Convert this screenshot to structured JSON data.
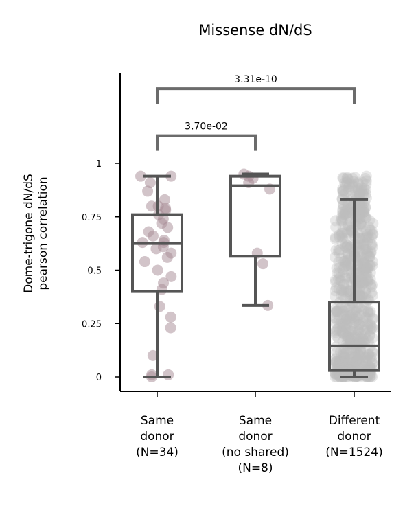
{
  "chart_data": {
    "type": "box",
    "title": "Missense dN/dS",
    "ylabel_line1": "Dome-trigone dN/dS",
    "ylabel_line2": "pearson correlation",
    "ylim": [
      -0.07,
      1.42
    ],
    "yticks": [
      0,
      0.25,
      0.5,
      0.75,
      1
    ],
    "ytick_labels": [
      "0",
      "0.25",
      "0.5",
      "0.75",
      "1"
    ],
    "grid": false,
    "groups": [
      {
        "label_lines": [
          "Same",
          "donor",
          "(N=34)"
        ],
        "n": 34,
        "box": {
          "q1": 0.4,
          "median": 0.625,
          "q3": 0.76,
          "whisker_low": 0.0,
          "whisker_high": 0.94
        },
        "point_color": "#a58a94",
        "points": [
          0.94,
          0.94,
          0.91,
          0.87,
          0.83,
          0.8,
          0.8,
          0.79,
          0.78,
          0.76,
          0.74,
          0.72,
          0.7,
          0.68,
          0.66,
          0.64,
          0.63,
          0.63,
          0.61,
          0.6,
          0.58,
          0.56,
          0.54,
          0.5,
          0.47,
          0.44,
          0.41,
          0.33,
          0.28,
          0.23,
          0.1,
          0.01,
          0.01,
          0.0
        ]
      },
      {
        "label_lines": [
          "Same",
          "donor",
          "(no shared)",
          "(N=8)"
        ],
        "n": 8,
        "box": {
          "q1": 0.565,
          "median": 0.895,
          "q3": 0.94,
          "whisker_low": 0.335,
          "whisker_high": 0.95
        },
        "point_color": "#a58a94",
        "points": [
          0.95,
          0.94,
          0.93,
          0.91,
          0.88,
          0.58,
          0.53,
          0.335
        ]
      },
      {
        "label_lines": [
          "Different",
          "donor",
          "(N=1524)"
        ],
        "n": 1524,
        "box": {
          "q1": 0.03,
          "median": 0.145,
          "q3": 0.35,
          "whisker_low": 0.0,
          "whisker_high": 0.83
        },
        "point_color": "#bdbdbd",
        "point_range": [
          0.0,
          0.94
        ]
      }
    ],
    "significance": [
      {
        "from": 0,
        "to": 1,
        "label": "3.70e-02",
        "level": 1.13
      },
      {
        "from": 0,
        "to": 2,
        "label": "3.31e-10",
        "level": 1.35
      }
    ]
  }
}
